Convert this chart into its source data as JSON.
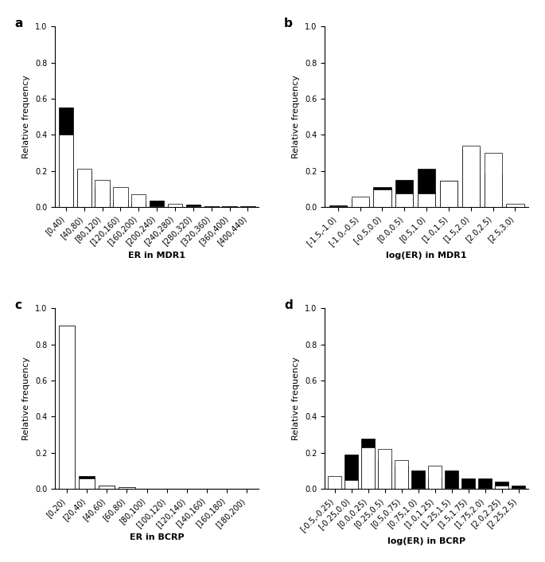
{
  "panel_a": {
    "title": "a",
    "xlabel": "ER in MDR1",
    "ylabel": "Relative frequency",
    "xlabels": [
      "[0,40)",
      "[40,80)",
      "[80,120)",
      "[120,160)",
      "[160,200)",
      "[200,240)",
      "[240,280)",
      "[280,320)",
      "[320,360)",
      "[360,400)",
      "[400,440)"
    ],
    "black": [
      0.55,
      0.2,
      0.11,
      0.04,
      0.02,
      0.035,
      0.01,
      0.012,
      0.005,
      0.003,
      0.002
    ],
    "white": [
      0.4,
      0.21,
      0.15,
      0.11,
      0.07,
      0.005,
      0.015,
      0.005,
      0.003,
      0.002,
      0.001
    ],
    "ylim": [
      0,
      1.0
    ]
  },
  "panel_b": {
    "title": "b",
    "xlabel": "log(ER) in MDR1",
    "ylabel": "Relative frequency",
    "xlabels": [
      "[-1.5,-1.0)",
      "[-1.0,-0.5)",
      "[-0.5,0.0)",
      "[0.0,0.5)",
      "[0.5,1.0)",
      "[1.0,1.5)",
      "[1.5,2.0)",
      "[2.0,2.5)",
      "[2.5,3.0)"
    ],
    "black": [
      0.01,
      0.04,
      0.11,
      0.15,
      0.21,
      0.145,
      0.32,
      0.185,
      0.01
    ],
    "white": [
      0.005,
      0.055,
      0.095,
      0.075,
      0.075,
      0.145,
      0.34,
      0.3,
      0.015
    ],
    "ylim": [
      0,
      1.0
    ]
  },
  "panel_c": {
    "title": "c",
    "xlabel": "ER in BCRP",
    "ylabel": "Relative frequency",
    "xlabels": [
      "[0,20)",
      "[20,40)",
      "[40,60)",
      "[60,80)",
      "[80,100)",
      "[100,120)",
      "[120,140)",
      "[140,160)",
      "[160,180)",
      "[180,200)"
    ],
    "black": [
      0.905,
      0.07,
      0.02,
      0.008,
      0.002,
      0.001,
      0.0005,
      0.0005,
      0.0005,
      0.0005
    ],
    "white": [
      0.905,
      0.06,
      0.02,
      0.008,
      0.002,
      0.001,
      0.0005,
      0.0005,
      0.0005,
      0.0005
    ],
    "ylim": [
      0,
      1.0
    ]
  },
  "panel_d": {
    "title": "d",
    "xlabel": "log(ER) in BCRP",
    "ylabel": "Relative frequency",
    "xlabels": [
      "[-0.5,-0.25)",
      "[-0.25,0.0)",
      "[0.0,0.25)",
      "[0.25,0.5)",
      "[0.5,0.75)",
      "[0.75,1.0)",
      "[1.0,1.25)",
      "[1.25,1.5)",
      "[1.5,1.75)",
      "[1.75,2.0)",
      "[2.0,2.25)",
      "[2.25,2.5)"
    ],
    "black": [
      0.0,
      0.19,
      0.28,
      0.16,
      0.13,
      0.1,
      0.06,
      0.1,
      0.06,
      0.06,
      0.04,
      0.02
    ],
    "white": [
      0.07,
      0.05,
      0.23,
      0.22,
      0.16,
      0.005,
      0.13,
      0.005,
      0.005,
      0.005,
      0.02,
      0.005
    ],
    "ylim": [
      0,
      1.0
    ]
  },
  "black_color": "#000000",
  "white_color": "#ffffff",
  "edge_color": "#000000",
  "bar_width": 0.8,
  "tick_fontsize": 7,
  "label_fontsize": 8,
  "title_fontsize": 11
}
